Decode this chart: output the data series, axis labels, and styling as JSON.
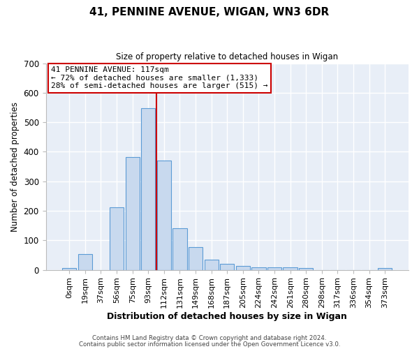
{
  "title": "41, PENNINE AVENUE, WIGAN, WN3 6DR",
  "subtitle": "Size of property relative to detached houses in Wigan",
  "xlabel": "Distribution of detached houses by size in Wigan",
  "ylabel": "Number of detached properties",
  "bar_labels": [
    "0sqm",
    "19sqm",
    "37sqm",
    "56sqm",
    "75sqm",
    "93sqm",
    "112sqm",
    "131sqm",
    "149sqm",
    "168sqm",
    "187sqm",
    "205sqm",
    "224sqm",
    "242sqm",
    "261sqm",
    "280sqm",
    "298sqm",
    "317sqm",
    "336sqm",
    "354sqm",
    "373sqm"
  ],
  "bar_values": [
    5,
    53,
    0,
    212,
    382,
    547,
    370,
    140,
    76,
    35,
    20,
    14,
    8,
    9,
    8,
    5,
    0,
    0,
    0,
    0,
    5
  ],
  "bar_color": "#c8d9ee",
  "bar_edge_color": "#5b9bd5",
  "figure_bg_color": "#ffffff",
  "axes_bg_color": "#e8eef7",
  "grid_color": "#ffffff",
  "vline_x": 5.5,
  "vline_color": "#cc0000",
  "annotation_title": "41 PENNINE AVENUE: 117sqm",
  "annotation_line1": "← 72% of detached houses are smaller (1,333)",
  "annotation_line2": "28% of semi-detached houses are larger (515) →",
  "annotation_box_color": "#ffffff",
  "annotation_border_color": "#cc0000",
  "ylim": [
    0,
    700
  ],
  "yticks": [
    0,
    100,
    200,
    300,
    400,
    500,
    600,
    700
  ],
  "footer1": "Contains HM Land Registry data © Crown copyright and database right 2024.",
  "footer2": "Contains public sector information licensed under the Open Government Licence v3.0."
}
